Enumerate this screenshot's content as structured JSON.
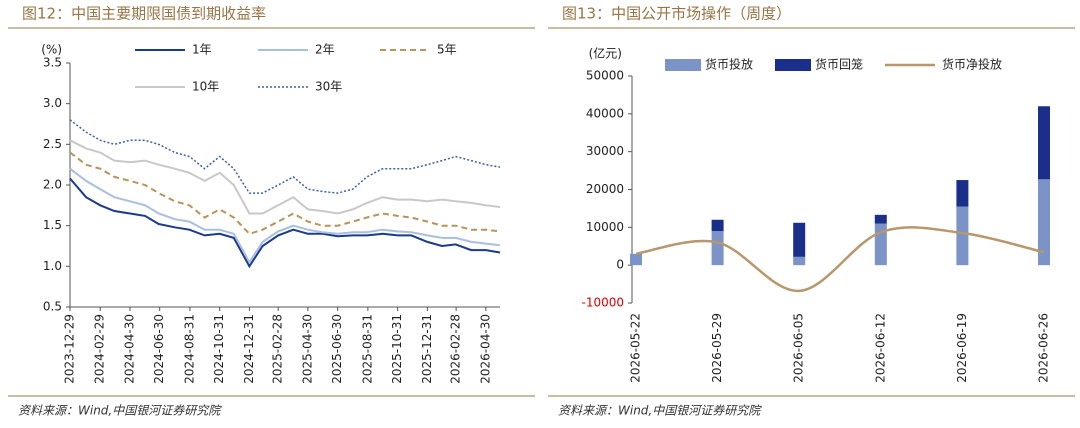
{
  "chart_data": [
    {
      "type": "line",
      "title": "图12：中国主要期限国债到期收益率",
      "ylabel": "(%)",
      "source": "资料来源：Wind,中国银河证券研究院",
      "x": [
        "2023-12-29",
        "2024-01-31",
        "2024-02-29",
        "2024-03-29",
        "2024-04-30",
        "2024-05-31",
        "2024-06-28",
        "2024-07-31",
        "2024-08-30",
        "2024-09-30",
        "2024-10-31",
        "2024-11-29",
        "2024-12-31",
        "2025-01-27",
        "2025-02-28",
        "2025-03-31",
        "2025-04-30",
        "2025-05-30",
        "2025-06-30",
        "2025-07-31",
        "2025-08-29",
        "2025-09-30",
        "2025-10-31",
        "2025-11-28",
        "2025-12-31",
        "2026-01-30",
        "2026-02-27",
        "2026-03-31",
        "2026-04-30",
        "2026-05-29"
      ],
      "xlim": [
        "2023-12-29",
        "2026-05-29"
      ],
      "xticks": [
        "2023-12-29",
        "2024-02-29",
        "2024-04-30",
        "2024-06-30",
        "2024-08-31",
        "2024-10-31",
        "2024-12-31",
        "2025-02-28",
        "2025-04-30",
        "2025-06-30",
        "2025-08-31",
        "2025-10-31",
        "2025-12-31",
        "2026-02-28",
        "2026-04-30"
      ],
      "ylim": [
        0.5,
        3.5
      ],
      "yticks": [
        0.5,
        {
          "value": 1,
          "label": "1.0"
        },
        1.5,
        {
          "value": 2,
          "label": "2.0"
        },
        2.5,
        {
          "value": 3,
          "label": "3.0"
        },
        3.5
      ],
      "series": [
        {
          "name": "1年",
          "color": "#1a3a8f",
          "style": "solid",
          "width": 2,
          "values": [
            2.08,
            1.85,
            1.75,
            1.68,
            1.65,
            1.62,
            1.52,
            1.48,
            1.45,
            1.38,
            1.4,
            1.35,
            1.0,
            1.25,
            1.38,
            1.45,
            1.4,
            1.4,
            1.37,
            1.38,
            1.38,
            1.4,
            1.38,
            1.38,
            1.3,
            1.25,
            1.27,
            1.2,
            1.2,
            1.17
          ]
        },
        {
          "name": "2年",
          "color": "#a9bfe0",
          "style": "solid",
          "width": 2,
          "values": [
            2.2,
            2.05,
            1.95,
            1.85,
            1.8,
            1.75,
            1.65,
            1.58,
            1.55,
            1.45,
            1.45,
            1.4,
            1.05,
            1.3,
            1.43,
            1.5,
            1.45,
            1.42,
            1.4,
            1.42,
            1.42,
            1.45,
            1.43,
            1.42,
            1.38,
            1.35,
            1.35,
            1.3,
            1.28,
            1.26
          ]
        },
        {
          "name": "5年",
          "color": "#b8945a",
          "style": "dashed",
          "width": 2,
          "values": [
            2.4,
            2.25,
            2.2,
            2.1,
            2.05,
            2.0,
            1.9,
            1.8,
            1.75,
            1.6,
            1.7,
            1.6,
            1.4,
            1.45,
            1.55,
            1.65,
            1.55,
            1.5,
            1.5,
            1.55,
            1.6,
            1.65,
            1.62,
            1.6,
            1.55,
            1.5,
            1.5,
            1.45,
            1.45,
            1.43
          ]
        },
        {
          "name": "10年",
          "color": "#c8c8c8",
          "style": "solid",
          "width": 2,
          "values": [
            2.55,
            2.45,
            2.4,
            2.3,
            2.28,
            2.3,
            2.25,
            2.2,
            2.15,
            2.05,
            2.15,
            2.0,
            1.65,
            1.65,
            1.75,
            1.85,
            1.7,
            1.68,
            1.65,
            1.7,
            1.78,
            1.85,
            1.82,
            1.82,
            1.8,
            1.82,
            1.8,
            1.78,
            1.75,
            1.73
          ]
        },
        {
          "name": "30年",
          "color": "#3a5fb0",
          "style": "dotted",
          "width": 1.5,
          "values": [
            2.8,
            2.65,
            2.55,
            2.5,
            2.55,
            2.55,
            2.5,
            2.4,
            2.35,
            2.2,
            2.35,
            2.2,
            1.9,
            1.9,
            2.0,
            2.1,
            1.95,
            1.92,
            1.9,
            1.95,
            2.1,
            2.2,
            2.2,
            2.2,
            2.25,
            2.3,
            2.35,
            2.3,
            2.25,
            2.22
          ]
        }
      ]
    },
    {
      "type": "bar",
      "stacked": true,
      "title": "图13：中国公开市场操作（周度）",
      "ylabel": "(亿元)",
      "source": "资料来源：Wind,中国银河证券研究院",
      "categories": [
        "2026-05-22",
        "2026-05-29",
        "2026-06-05",
        "2026-06-12",
        "2026-06-19",
        "2026-06-26"
      ],
      "ylim": [
        -10000,
        50000
      ],
      "yticks": [
        -10000,
        0,
        10000,
        20000,
        30000,
        40000,
        50000
      ],
      "negative_tick_color": "#e00000",
      "series": [
        {
          "name": "货币投放",
          "color": "#7b93c6",
          "values": [
            3000,
            9000,
            2200,
            11000,
            15500,
            22700
          ]
        },
        {
          "name": "货币回笼",
          "color": "#1a2f8a",
          "values": [
            0,
            3000,
            9000,
            2300,
            7000,
            19300
          ]
        },
        {
          "name": "货币净投放",
          "color": "#b8976a",
          "type": "line",
          "values": [
            3000,
            6000,
            -6800,
            8700,
            8500,
            3400
          ]
        }
      ]
    }
  ]
}
